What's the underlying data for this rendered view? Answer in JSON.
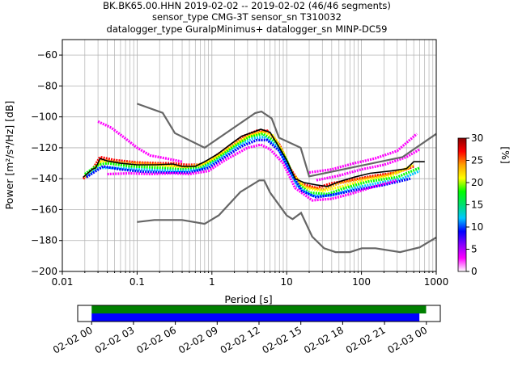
{
  "title_lines": [
    "BK.BK65.00.HHN   2019-02-02 -- 2019-02-02  (46/46 segments)",
    "sensor_type CMG-3T sensor_sn T310032",
    "datalogger_type GuralpMinimus+ datalogger_sn MINP-DC59"
  ],
  "chart_data": [
    {
      "type": "heatmap",
      "xlabel": "Period [s]",
      "ylabel": "Power [m²/s⁴/Hz] [dB]",
      "xscale": "log",
      "xlim": [
        0.01,
        1000
      ],
      "ylim": [
        -200,
        -50
      ],
      "xticks": [
        0.01,
        0.1,
        1,
        10,
        100,
        1000
      ],
      "xtick_labels": [
        "0.01",
        "0.1",
        "1",
        "10",
        "100",
        "1000"
      ],
      "yticks": [
        -200,
        -180,
        -160,
        -140,
        -120,
        -100,
        -80,
        -60
      ],
      "grid": true,
      "colorbar": {
        "label": "[%]",
        "range": [
          0,
          30
        ],
        "ticks": [
          0,
          5,
          10,
          15,
          20,
          25,
          30
        ],
        "colors": [
          "#ffffff",
          "#ff00ff",
          "#8800ff",
          "#0000ff",
          "#00c8ff",
          "#00e070",
          "#00ff00",
          "#ffff00",
          "#ffa000",
          "#ff0000",
          "#8b0000"
        ]
      },
      "noise_model_color": "#666666",
      "high_noise_model": [
        [
          0.1,
          -91.5
        ],
        [
          0.22,
          -97.4
        ],
        [
          0.32,
          -110.5
        ],
        [
          0.8,
          -120
        ],
        [
          3.8,
          -97.5
        ],
        [
          4.6,
          -96.5
        ],
        [
          6.3,
          -101
        ],
        [
          7.9,
          -113.5
        ],
        [
          15.4,
          -120
        ],
        [
          20,
          -138.5
        ],
        [
          354.8,
          -126
        ],
        [
          1000,
          -111
        ]
      ],
      "low_noise_model": [
        [
          0.1,
          -168
        ],
        [
          0.17,
          -166.7
        ],
        [
          0.4,
          -166.7
        ],
        [
          0.8,
          -169.2
        ],
        [
          1.24,
          -163.7
        ],
        [
          2.4,
          -148.6
        ],
        [
          4.3,
          -141.1
        ],
        [
          5,
          -141.1
        ],
        [
          6,
          -149
        ],
        [
          10,
          -163.8
        ],
        [
          12,
          -166.2
        ],
        [
          15.6,
          -162.1
        ],
        [
          21.9,
          -177.5
        ],
        [
          31.6,
          -185
        ],
        [
          45,
          -187.5
        ],
        [
          70,
          -187.5
        ],
        [
          101,
          -185
        ],
        [
          154,
          -185
        ],
        [
          328,
          -187.5
        ],
        [
          600,
          -184.4
        ],
        [
          1000,
          -178
        ]
      ],
      "mean_curve": [
        [
          0.019,
          -139
        ],
        [
          0.025,
          -134
        ],
        [
          0.028,
          -133
        ],
        [
          0.032,
          -127
        ],
        [
          0.04,
          -128.5
        ],
        [
          0.06,
          -130
        ],
        [
          0.1,
          -131
        ],
        [
          0.18,
          -131
        ],
        [
          0.3,
          -130.5
        ],
        [
          0.4,
          -132
        ],
        [
          0.6,
          -132
        ],
        [
          0.8,
          -129
        ],
        [
          1.2,
          -124
        ],
        [
          1.8,
          -117.5
        ],
        [
          2.5,
          -112.5
        ],
        [
          3.5,
          -110
        ],
        [
          4.5,
          -108
        ],
        [
          6,
          -110
        ],
        [
          8,
          -120
        ],
        [
          10,
          -128
        ],
        [
          13,
          -140
        ],
        [
          17,
          -142.5
        ],
        [
          25,
          -144
        ],
        [
          35,
          -145
        ],
        [
          50,
          -142
        ],
        [
          80,
          -139
        ],
        [
          130,
          -136.5
        ],
        [
          250,
          -135
        ],
        [
          400,
          -133.5
        ],
        [
          500,
          -129
        ],
        [
          700,
          -129
        ]
      ],
      "psd_curves": [
        {
          "color": "#ff0000",
          "values": [
            [
              0.019,
              -140
            ],
            [
              0.024,
              -136
            ],
            [
              0.032,
              -126
            ],
            [
              0.05,
              -128
            ],
            [
              0.1,
              -129.5
            ],
            [
              0.2,
              -130
            ],
            [
              0.3,
              -130
            ],
            [
              0.45,
              -131
            ],
            [
              0.7,
              -131
            ],
            [
              1,
              -127
            ],
            [
              1.5,
              -121
            ],
            [
              2.5,
              -113
            ],
            [
              4,
              -109
            ],
            [
              5.5,
              -109
            ],
            [
              8,
              -118
            ],
            [
              11,
              -133
            ],
            [
              15,
              -143
            ],
            [
              25,
              -146
            ],
            [
              40,
              -143
            ],
            [
              70,
              -141
            ],
            [
              150,
              -138
            ],
            [
              300,
              -136
            ],
            [
              500,
              -132
            ]
          ]
        },
        {
          "color": "#ffa000",
          "values": [
            [
              0.02,
              -139
            ],
            [
              0.028,
              -132
            ],
            [
              0.034,
              -128
            ],
            [
              0.06,
              -129.5
            ],
            [
              0.12,
              -130
            ],
            [
              0.25,
              -131
            ],
            [
              0.45,
              -132.5
            ],
            [
              0.8,
              -130
            ],
            [
              1.3,
              -124
            ],
            [
              2,
              -117
            ],
            [
              3.5,
              -111
            ],
            [
              5,
              -109.5
            ],
            [
              7,
              -114
            ],
            [
              9,
              -124
            ],
            [
              12,
              -138
            ],
            [
              17,
              -145
            ],
            [
              30,
              -147
            ],
            [
              50,
              -143
            ],
            [
              100,
              -140
            ],
            [
              200,
              -138
            ],
            [
              450,
              -133
            ]
          ]
        },
        {
          "color": "#ffff00",
          "values": [
            [
              0.02,
              -138
            ],
            [
              0.026,
              -135
            ],
            [
              0.033,
              -129
            ],
            [
              0.07,
              -131
            ],
            [
              0.15,
              -132
            ],
            [
              0.3,
              -132
            ],
            [
              0.6,
              -132.5
            ],
            [
              1,
              -128
            ],
            [
              1.8,
              -120
            ],
            [
              3,
              -113
            ],
            [
              4.5,
              -110
            ],
            [
              6.5,
              -112
            ],
            [
              9,
              -123
            ],
            [
              12,
              -137
            ],
            [
              18,
              -146
            ],
            [
              30,
              -148
            ],
            [
              55,
              -145
            ],
            [
              110,
              -141
            ],
            [
              250,
              -138
            ],
            [
              500,
              -131
            ]
          ]
        },
        {
          "color": "#00ff00",
          "values": [
            [
              0.02,
              -137
            ],
            [
              0.03,
              -131
            ],
            [
              0.04,
              -130
            ],
            [
              0.08,
              -132
            ],
            [
              0.2,
              -133
            ],
            [
              0.4,
              -134
            ],
            [
              0.7,
              -133
            ],
            [
              1.1,
              -128
            ],
            [
              2,
              -119
            ],
            [
              3.2,
              -113
            ],
            [
              4.8,
              -111
            ],
            [
              7,
              -116
            ],
            [
              10,
              -128
            ],
            [
              13,
              -142
            ],
            [
              20,
              -149
            ],
            [
              35,
              -150
            ],
            [
              60,
              -146
            ],
            [
              120,
              -142
            ],
            [
              300,
              -139
            ],
            [
              600,
              -133
            ]
          ]
        },
        {
          "color": "#00c8ff",
          "values": [
            [
              0.021,
              -138
            ],
            [
              0.03,
              -133
            ],
            [
              0.05,
              -133
            ],
            [
              0.1,
              -134
            ],
            [
              0.2,
              -134.5
            ],
            [
              0.4,
              -135
            ],
            [
              0.7,
              -134
            ],
            [
              1.2,
              -128
            ],
            [
              2.2,
              -119
            ],
            [
              3.5,
              -114
            ],
            [
              5,
              -113
            ],
            [
              7.5,
              -119
            ],
            [
              10,
              -131
            ],
            [
              14,
              -145
            ],
            [
              22,
              -151
            ],
            [
              40,
              -151
            ],
            [
              80,
              -146
            ],
            [
              160,
              -143
            ],
            [
              350,
              -140
            ],
            [
              600,
              -135
            ]
          ]
        },
        {
          "color": "#0000ff",
          "values": [
            [
              0.021,
              -139
            ],
            [
              0.035,
              -132
            ],
            [
              0.06,
              -134
            ],
            [
              0.12,
              -135.5
            ],
            [
              0.25,
              -136
            ],
            [
              0.5,
              -136
            ],
            [
              0.9,
              -133
            ],
            [
              1.5,
              -126
            ],
            [
              2.5,
              -119
            ],
            [
              4,
              -115
            ],
            [
              5.5,
              -115
            ],
            [
              8,
              -122
            ],
            [
              11,
              -135
            ],
            [
              16,
              -148
            ],
            [
              25,
              -152
            ],
            [
              45,
              -150
            ],
            [
              90,
              -147
            ],
            [
              200,
              -144
            ],
            [
              450,
              -140
            ]
          ]
        },
        {
          "color": "#ff00ff",
          "values": [
            [
              0.03,
              -103
            ],
            [
              0.045,
              -107
            ],
            [
              0.07,
              -114
            ],
            [
              0.1,
              -120
            ],
            [
              0.15,
              -125
            ],
            [
              0.25,
              -127
            ],
            [
              0.4,
              -129
            ]
          ]
        },
        {
          "color": "#ff00ff",
          "values": [
            [
              0.04,
              -137
            ],
            [
              0.08,
              -136.5
            ],
            [
              0.15,
              -137
            ],
            [
              0.3,
              -136.5
            ],
            [
              0.5,
              -137
            ],
            [
              0.9,
              -135
            ],
            [
              1.5,
              -128
            ],
            [
              3,
              -120
            ],
            [
              4.5,
              -118
            ],
            [
              6,
              -121
            ],
            [
              9,
              -130
            ],
            [
              13,
              -146
            ],
            [
              22,
              -154
            ],
            [
              40,
              -153
            ],
            [
              70,
              -150
            ],
            [
              150,
              -145
            ],
            [
              300,
              -141
            ]
          ]
        },
        {
          "color": "#ff00ff",
          "values": [
            [
              20,
              -136
            ],
            [
              40,
              -134
            ],
            [
              80,
              -130
            ],
            [
              150,
              -127
            ],
            [
              300,
              -122
            ],
            [
              550,
              -111
            ]
          ]
        },
        {
          "color": "#ff00ff",
          "values": [
            [
              25,
              -141
            ],
            [
              50,
              -138
            ],
            [
              100,
              -134
            ],
            [
              200,
              -131
            ],
            [
              400,
              -126
            ],
            [
              600,
              -121
            ]
          ]
        }
      ]
    },
    {
      "type": "timeline",
      "xlim": [
        "2019-02-01T23:00",
        "2019-02-03T01:00"
      ],
      "xticks": [
        "2019-02-02T00:00",
        "2019-02-02T03:00",
        "2019-02-02T06:00",
        "2019-02-02T09:00",
        "2019-02-02T12:00",
        "2019-02-02T15:00",
        "2019-02-02T18:00",
        "2019-02-02T21:00",
        "2019-02-03T00:00"
      ],
      "xtick_labels": [
        "02-02 00",
        "02-02 03",
        "02-02 06",
        "02-02 09",
        "02-02 12",
        "02-02 15",
        "02-02 18",
        "02-02 21",
        "02-03 00"
      ],
      "bars": [
        {
          "color": "#008000",
          "start": "2019-02-02T00:00",
          "end": "2019-02-02T23:59"
        },
        {
          "color": "#0000ff",
          "start": "2019-02-02T00:00",
          "end": "2019-02-02T23:30"
        }
      ]
    }
  ]
}
